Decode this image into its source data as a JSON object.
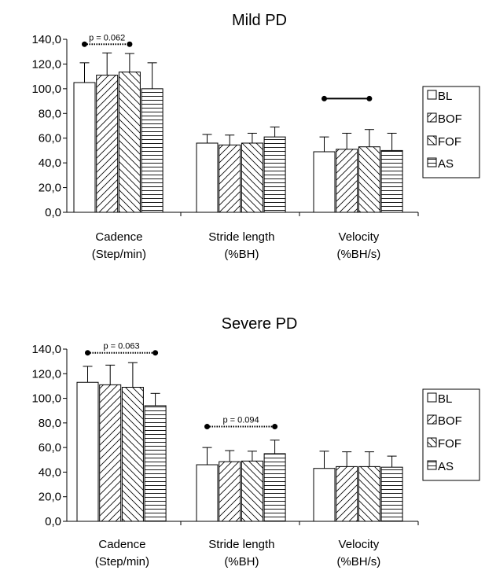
{
  "chart_data": [
    {
      "type": "bar",
      "title": "Mild PD",
      "categories": [
        [
          "Cadence",
          "(Step/min)"
        ],
        [
          "Stride length",
          "(%BH)"
        ],
        [
          "Velocity",
          "(%BH/s)"
        ]
      ],
      "series": [
        {
          "name": "BL",
          "pattern": "none",
          "values": [
            105,
            56,
            49
          ],
          "errors": [
            16,
            7,
            12
          ]
        },
        {
          "name": "BOF",
          "pattern": "diag-right",
          "values": [
            111,
            54.5,
            51
          ],
          "errors": [
            18,
            8,
            13
          ]
        },
        {
          "name": "FOF",
          "pattern": "diag-left",
          "values": [
            113.5,
            56,
            53
          ],
          "errors": [
            15,
            8,
            14
          ]
        },
        {
          "name": "AS",
          "pattern": "horizontal",
          "values": [
            100,
            61,
            50
          ],
          "errors": [
            21,
            8,
            14
          ]
        }
      ],
      "ylim": [
        0,
        140
      ],
      "yticks": [
        "0,0",
        "20,0",
        "40,0",
        "60,0",
        "80,0",
        "100,0",
        "120,0",
        "140,0"
      ],
      "legend_position": "right",
      "annotations": [
        {
          "category": 0,
          "from_series": 0,
          "to_series": 2,
          "y": 136,
          "style": "dotted",
          "label": "p = 0.062"
        },
        {
          "category": 2,
          "from_series": 0,
          "to_series": 2,
          "y": 92,
          "style": "solid",
          "label": ""
        }
      ]
    },
    {
      "type": "bar",
      "title": "Severe PD",
      "categories": [
        [
          "Cadence",
          "(Step/min)"
        ],
        [
          "Stride length",
          "(%BH)"
        ],
        [
          "Velocity",
          "(%BH/s)"
        ]
      ],
      "series": [
        {
          "name": "BL",
          "pattern": "none",
          "values": [
            113,
            46,
            43
          ],
          "errors": [
            13,
            14,
            14
          ]
        },
        {
          "name": "BOF",
          "pattern": "diag-right",
          "values": [
            111,
            48.5,
            44.5
          ],
          "errors": [
            16,
            9,
            12
          ]
        },
        {
          "name": "FOF",
          "pattern": "diag-left",
          "values": [
            109,
            49,
            44.5
          ],
          "errors": [
            20,
            8,
            12
          ]
        },
        {
          "name": "AS",
          "pattern": "horizontal",
          "values": [
            94,
            55,
            44
          ],
          "errors": [
            10,
            11,
            9
          ]
        }
      ],
      "ylim": [
        0,
        140
      ],
      "yticks": [
        "0,0",
        "20,0",
        "40,0",
        "60,0",
        "80,0",
        "100,0",
        "120,0",
        "140,0"
      ],
      "legend_position": "right",
      "annotations": [
        {
          "category": 0,
          "from_series": 0,
          "to_series": 3,
          "y": 137,
          "style": "dotted",
          "label": "p = 0.063"
        },
        {
          "category": 1,
          "from_series": 0,
          "to_series": 3,
          "y": 77,
          "style": "dotted",
          "label": "p = 0.094"
        }
      ]
    }
  ]
}
